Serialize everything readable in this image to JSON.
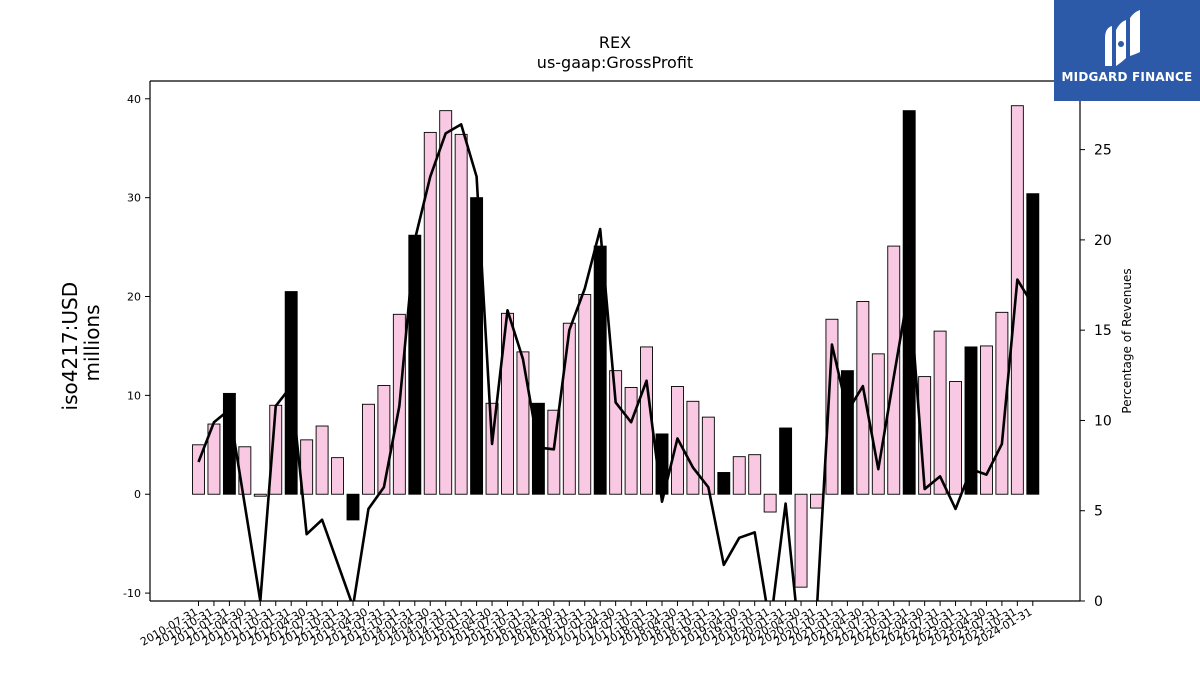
{
  "brand": {
    "name": "MIDGARD FINANCE",
    "bg_color": "#2d5aa8"
  },
  "chart_data": {
    "type": "bar",
    "title": "REX",
    "subtitle": "us-gaap:GrossProfit",
    "ylabel_line1": "iso4217:USD",
    "ylabel_line2": "millions",
    "y2label": "Percentage of Revenues",
    "ylim": [
      -10.8,
      41.8
    ],
    "y2lim": [
      0,
      28.8
    ],
    "yticks": [
      -10,
      0,
      10,
      20,
      30,
      40
    ],
    "y2ticks": [
      0,
      5,
      10,
      15,
      20,
      25
    ],
    "colors": {
      "quarter_bar": "#f9c8e2",
      "annual_bar": "#000000",
      "line": "#000000"
    },
    "categories": [
      "2010-07-31",
      "2010-10-31",
      "2011-01-31",
      "2011-04-30",
      "2011-07-31",
      "2011-10-31",
      "2012-01-31",
      "2012-04-30",
      "2012-07-31",
      "2012-10-31",
      "2013-01-31",
      "2013-04-30",
      "2013-07-31",
      "2013-10-31",
      "2014-01-31",
      "2014-04-30",
      "2014-07-31",
      "2014-10-31",
      "2015-01-31",
      "2015-04-30",
      "2015-07-31",
      "2015-10-31",
      "2016-01-31",
      "2016-04-30",
      "2016-07-31",
      "2016-10-31",
      "2017-01-31",
      "2017-04-30",
      "2017-07-31",
      "2017-10-31",
      "2018-01-31",
      "2018-04-30",
      "2018-07-31",
      "2018-10-31",
      "2019-01-31",
      "2019-04-30",
      "2019-07-31",
      "2019-10-31",
      "2020-01-31",
      "2020-04-30",
      "2020-07-31",
      "2020-10-31",
      "2021-01-31",
      "2021-04-30",
      "2021-07-31",
      "2021-10-31",
      "2022-01-31",
      "2022-04-30",
      "2022-07-31",
      "2022-10-31",
      "2023-01-31",
      "2023-04-30",
      "2023-07-31",
      "2023-10-31",
      "2024-01-31"
    ],
    "xtick_labels": [
      "2010-07-31",
      "2010-10-31",
      "2011-01-31",
      "2011-04-30",
      "2011-07-31",
      "2011-10-31",
      "2012-01-31",
      "2012-04-30",
      "2012-07-31",
      "2012-10-31",
      "2013-01-31",
      "2013-04-30",
      "2013-07-31",
      "2013-10-31",
      "2014-01-31",
      "2014-04-30",
      "2014-07-31",
      "2014-10-31",
      "2015-01-31",
      "2015-04-30",
      "2015-07-31",
      "2015-10-31",
      "2016-01-31",
      "2016-04-30",
      "2016-07-31",
      "2016-10-31",
      "2017-01-31",
      "2017-04-30",
      "2017-07-31",
      "2017-10-31",
      "2018-01-31",
      "2018-04-30",
      "2018-07-31",
      "2018-10-31",
      "2019-01-31",
      "2019-04-30",
      "2019-07-31",
      "2019-10-31",
      "2020-01-31",
      "2020-04-30",
      "2020-07-31",
      "2020-10-31",
      "2021-01-31",
      "2021-04-30",
      "2021-07-31",
      "2021-10-31",
      "2022-01-31",
      "2022-04-30",
      "2022-07-31",
      "2022-10-31",
      "2023-01-31",
      "2023-04-30",
      "2023-07-31",
      "2023-10-31",
      "2024-01-31"
    ],
    "gross_profit": [
      5.0,
      7.1,
      10.2,
      4.8,
      -0.2,
      9.0,
      20.5,
      5.5,
      6.9,
      3.7,
      -2.6,
      9.1,
      11.0,
      18.2,
      26.2,
      36.6,
      38.8,
      36.4,
      30.0,
      9.2,
      18.3,
      14.4,
      9.2,
      8.5,
      17.3,
      20.2,
      25.1,
      12.5,
      10.8,
      14.9,
      6.1,
      10.9,
      9.4,
      7.8,
      2.2,
      3.8,
      4.0,
      -1.8,
      6.7,
      -9.4,
      -1.4,
      17.7,
      12.5,
      19.5,
      14.2,
      25.1,
      38.8,
      11.9,
      16.5,
      11.4,
      14.9,
      15.0,
      18.4,
      39.3,
      30.4
    ],
    "is_annual": [
      false,
      false,
      true,
      false,
      false,
      false,
      true,
      false,
      false,
      false,
      true,
      false,
      false,
      false,
      true,
      false,
      false,
      false,
      true,
      false,
      false,
      false,
      true,
      false,
      false,
      false,
      true,
      false,
      false,
      false,
      true,
      false,
      false,
      false,
      true,
      false,
      false,
      false,
      true,
      false,
      false,
      false,
      true,
      false,
      false,
      false,
      true,
      false,
      false,
      false,
      true,
      false,
      false,
      false,
      true
    ],
    "percentage_of_revenues": [
      7.7,
      9.9,
      10.6,
      5.3,
      0.0,
      10.8,
      11.9,
      3.7,
      4.5,
      2.1,
      -0.3,
      5.1,
      6.3,
      10.8,
      20.0,
      23.5,
      25.9,
      26.4,
      23.5,
      8.7,
      16.1,
      13.4,
      8.5,
      8.4,
      15.0,
      17.3,
      20.6,
      11.0,
      9.9,
      12.2,
      5.5,
      9.0,
      7.4,
      6.3,
      2.0,
      3.5,
      3.8,
      -1.4,
      5.4,
      -3.0,
      -0.8,
      14.2,
      10.5,
      11.9,
      7.3,
      12.4,
      17.4,
      6.2,
      6.9,
      5.1,
      7.3,
      7.0,
      8.7,
      17.8,
      16.4
    ]
  }
}
